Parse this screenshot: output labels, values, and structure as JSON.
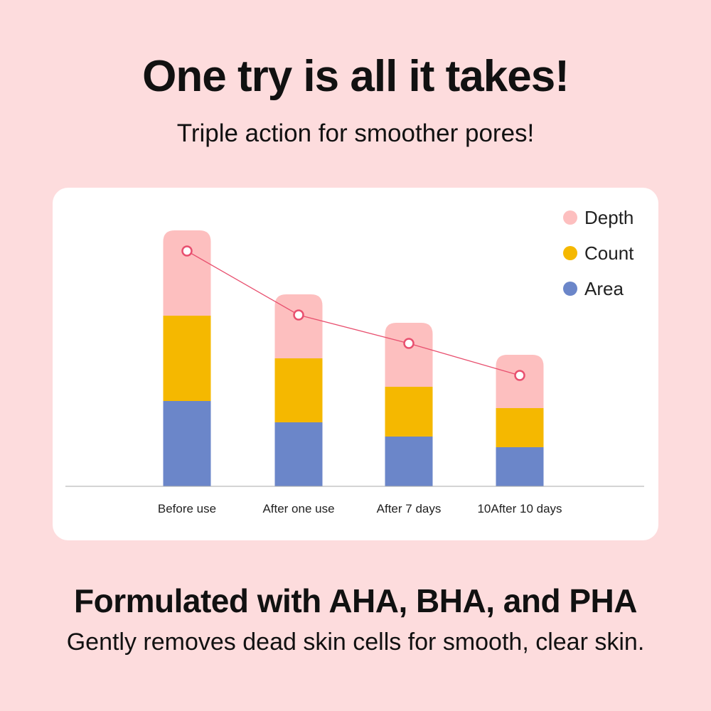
{
  "header": {
    "title": "One try is all it takes!",
    "subtitle": "Triple action for smoother pores!"
  },
  "footer": {
    "heading": "Formulated with AHA, BHA, and PHA",
    "text": "Gently removes dead skin cells for smooth, clear skin."
  },
  "chart_data": {
    "type": "bar",
    "stacked": true,
    "categories": [
      "Before use",
      "After one use",
      "After 7 days",
      "10After 10 days"
    ],
    "series": [
      {
        "name": "Area",
        "color": "#6b86c9",
        "values": [
          120,
          90,
          70,
          55
        ]
      },
      {
        "name": "Count",
        "color": "#f5b800",
        "values": [
          120,
          90,
          70,
          55
        ]
      },
      {
        "name": "Depth",
        "color": "#fdbfbf",
        "values": [
          120,
          90,
          90,
          75
        ]
      }
    ],
    "trend_line": {
      "color": "#e8506f",
      "follows": "stack totals"
    },
    "legend": {
      "position": "top-right",
      "items": [
        "Depth",
        "Count",
        "Area"
      ]
    },
    "y_axis_visible": false,
    "grid": false
  }
}
